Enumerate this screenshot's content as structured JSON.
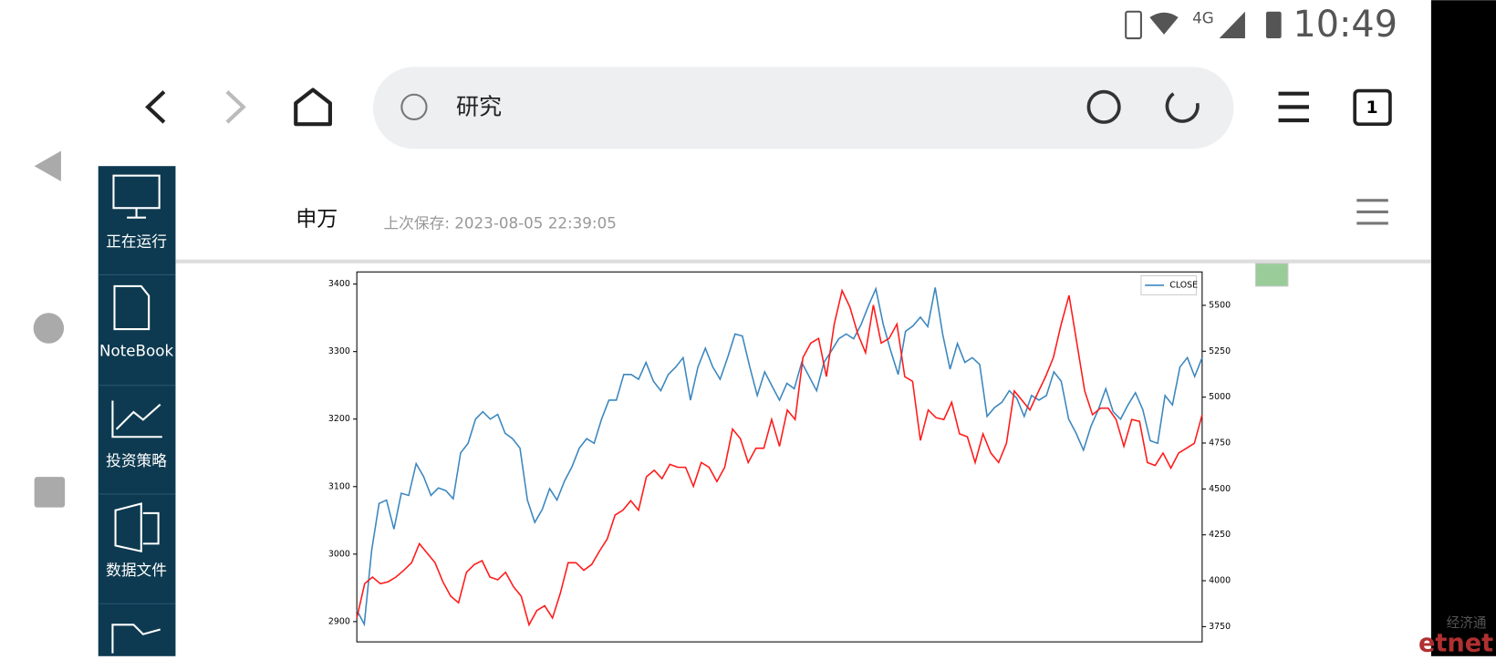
{
  "status_bar": {
    "network": "4G",
    "time": "10:49"
  },
  "browser": {
    "url": "研究",
    "tab_count": "1"
  },
  "sidebar": {
    "items": [
      "正在运行",
      "NoteBook",
      "投资策略",
      "数据文件"
    ]
  },
  "page": {
    "title": "申万",
    "last_saved": "上次保存: 2023-08-05 22:39:05"
  },
  "chart_data": {
    "type": "line",
    "series": [
      {
        "name": "CLOSE",
        "color": "#3c87bf",
        "values": [
          2917,
          2896,
          3005,
          3075,
          3080,
          3037,
          3090,
          3087,
          3134,
          3115,
          3087,
          3098,
          3094,
          3082,
          3150,
          3164,
          3200,
          3211,
          3200,
          3207,
          3179,
          3171,
          3157,
          3080,
          3047,
          3066,
          3097,
          3080,
          3108,
          3129,
          3157,
          3171,
          3164,
          3200,
          3228,
          3228,
          3266,
          3266,
          3259,
          3284,
          3256,
          3242,
          3266,
          3277,
          3291,
          3228,
          3277,
          3305,
          3277,
          3259,
          3291,
          3326,
          3323,
          3277,
          3235,
          3270,
          3249,
          3228,
          3253,
          3245,
          3284,
          3263,
          3242,
          3284,
          3301,
          3319,
          3326,
          3319,
          3340,
          3368,
          3393,
          3340,
          3301,
          3266,
          3330,
          3338,
          3351,
          3337,
          3395,
          3326,
          3274,
          3312,
          3284,
          3291,
          3281,
          3204,
          3217,
          3225,
          3242,
          3231,
          3204,
          3235,
          3228,
          3235,
          3270,
          3256,
          3200,
          3179,
          3154,
          3189,
          3214,
          3245,
          3211,
          3200,
          3221,
          3239,
          3214,
          3168,
          3164,
          3235,
          3221,
          3277,
          3291,
          3263,
          3291
        ]
      },
      {
        "color": "#ff1a1a",
        "axis": "y2",
        "values": [
          3797,
          3984,
          4020,
          3984,
          3994,
          4020,
          4057,
          4098,
          4202,
          4150,
          4098,
          3994,
          3916,
          3880,
          4046,
          4088,
          4109,
          4020,
          4005,
          4046,
          3968,
          3916,
          3760,
          3838,
          3864,
          3797,
          3932,
          4098,
          4098,
          4057,
          4088,
          4161,
          4228,
          4358,
          4384,
          4436,
          4384,
          4566,
          4602,
          4556,
          4634,
          4618,
          4618,
          4514,
          4644,
          4618,
          4540,
          4618,
          4826,
          4774,
          4644,
          4722,
          4722,
          4878,
          4732,
          4930,
          4878,
          5216,
          5294,
          5320,
          5112,
          5398,
          5580,
          5491,
          5346,
          5242,
          5502,
          5294,
          5320,
          5398,
          5112,
          5086,
          4764,
          4930,
          4888,
          4878,
          4972,
          4800,
          4784,
          4644,
          4800,
          4696,
          4644,
          4748,
          5034,
          4982,
          4930,
          5023,
          5112,
          5216,
          5398,
          5554,
          5294,
          5034,
          4904,
          4940,
          4940,
          4878,
          4732,
          4878,
          4868,
          4644,
          4628,
          4696,
          4613,
          4696,
          4722,
          4748,
          4904
        ]
      }
    ],
    "ylim": [
      2870,
      3418
    ],
    "yticks": [
      2900,
      3000,
      3100,
      3200,
      3300,
      3400
    ],
    "y2lim": [
      3667,
      5682
    ],
    "y2ticks": [
      3750,
      4000,
      4250,
      4500,
      4750,
      5000,
      5250,
      5500
    ],
    "legend": "upper right"
  },
  "watermark": {
    "cn": "经济通",
    "en": "etnet"
  }
}
